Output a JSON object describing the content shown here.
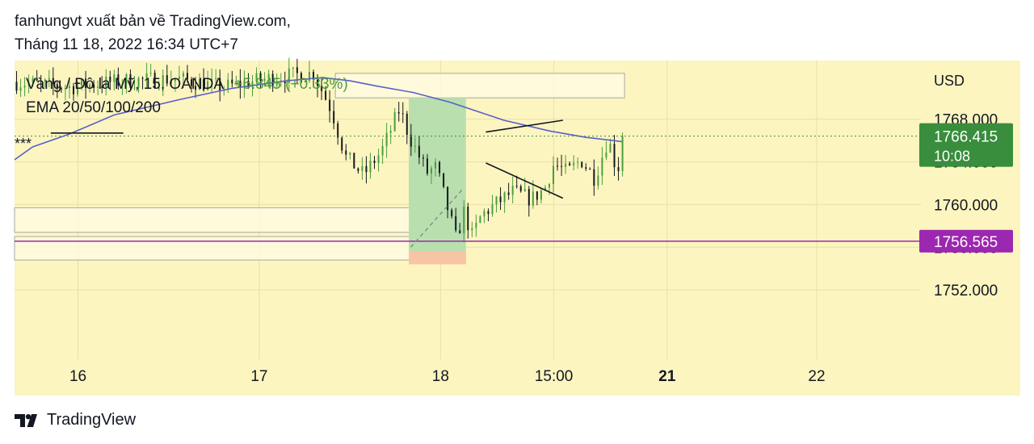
{
  "header": {
    "publisher_line": "fanhungvt xuất bản về TradingView.com,",
    "date_line": "Tháng 11 18, 2022 16:34 UTC+7"
  },
  "legend": {
    "symbol": "Vàng / Đô la Mỹ, 15, OANDA",
    "change": "+5.845 (+0.33%)",
    "indicator": "EMA 20/50/100/200"
  },
  "annotation": "***",
  "price_axis": {
    "currency": "USD",
    "ticks": [
      "1768.000",
      "1764.000",
      "1760.000",
      "1756.000",
      "1752.000"
    ],
    "last_price_badge": {
      "price": "1766.415",
      "countdown": "10:08",
      "color": "#388e3c"
    },
    "level_badge": {
      "price": "1756.565",
      "color": "#9c27b0"
    }
  },
  "time_axis": {
    "labels": [
      "16",
      "17",
      "18",
      "15:00",
      "21",
      "22"
    ]
  },
  "footer": {
    "brand": "TradingView",
    "logo_icon": "tradingview-logo-icon"
  },
  "colors": {
    "background": "#fdf5c0",
    "ema": "#5b5fc7",
    "bull": "#4a9e3f",
    "bear": "#131722",
    "level_line": "#9c27b0",
    "long_target_zone": "#b9dfae",
    "long_stop_zone": "#f9c3a6"
  },
  "chart_data": {
    "type": "candlestick",
    "symbol": "XAUUSD",
    "timeframe": "15",
    "ylim": [
      1745.5,
      1773.5
    ],
    "last_price": 1766.415,
    "horizontal_level": 1756.565,
    "ema_points": [
      {
        "t": 0,
        "v": 1764.2
      },
      {
        "t": 2,
        "v": 1765.4
      },
      {
        "t": 6,
        "v": 1766.6
      },
      {
        "t": 11,
        "v": 1768.4
      },
      {
        "t": 18,
        "v": 1769.8
      },
      {
        "t": 24,
        "v": 1770.9
      },
      {
        "t": 30,
        "v": 1771.6
      },
      {
        "t": 34,
        "v": 1771.9
      },
      {
        "t": 37,
        "v": 1771.6
      },
      {
        "t": 40,
        "v": 1771.1
      },
      {
        "t": 44,
        "v": 1770.5
      },
      {
        "t": 48,
        "v": 1769.6
      },
      {
        "t": 54,
        "v": 1767.9
      },
      {
        "t": 59,
        "v": 1766.9
      },
      {
        "t": 63,
        "v": 1766.3
      },
      {
        "t": 67,
        "v": 1765.9
      }
    ],
    "price_path": [
      {
        "t": 0,
        "v": 1771.5
      },
      {
        "t": 6,
        "v": 1771.0
      },
      {
        "t": 12,
        "v": 1771.6
      },
      {
        "t": 18,
        "v": 1771.8
      },
      {
        "t": 23,
        "v": 1771.0
      },
      {
        "t": 29,
        "v": 1772.0
      },
      {
        "t": 33,
        "v": 1772.3
      },
      {
        "t": 35,
        "v": 1768.8
      },
      {
        "t": 36.5,
        "v": 1764.5
      },
      {
        "t": 38.5,
        "v": 1762.8
      },
      {
        "t": 40.5,
        "v": 1765.0
      },
      {
        "t": 42.5,
        "v": 1769.0
      },
      {
        "t": 43.5,
        "v": 1766.5
      },
      {
        "t": 45.5,
        "v": 1763.0
      },
      {
        "t": 46.5,
        "v": 1763.5
      },
      {
        "t": 48.0,
        "v": 1759.0
      },
      {
        "t": 48.8,
        "v": 1756.5
      },
      {
        "t": 49.5,
        "v": 1759.5
      },
      {
        "t": 50.5,
        "v": 1757.0
      },
      {
        "t": 51.5,
        "v": 1759.0
      },
      {
        "t": 53,
        "v": 1760.0
      },
      {
        "t": 55,
        "v": 1761.2
      },
      {
        "t": 57,
        "v": 1760.5
      },
      {
        "t": 58.5,
        "v": 1761.5
      },
      {
        "t": 59.5,
        "v": 1763.8
      },
      {
        "t": 61,
        "v": 1763.0
      },
      {
        "t": 62.5,
        "v": 1764.2
      },
      {
        "t": 64,
        "v": 1762.5
      },
      {
        "t": 65.5,
        "v": 1766.2
      },
      {
        "t": 66.5,
        "v": 1763.0
      },
      {
        "t": 67.3,
        "v": 1766.4
      }
    ],
    "candle_count": 150,
    "time_range": [
      0,
      100
    ],
    "time_ticks": [
      {
        "label": "16",
        "t": 7.0
      },
      {
        "label": "17",
        "t": 27.0
      },
      {
        "label": "18",
        "t": 47.0
      },
      {
        "label": "15:00",
        "t": 59.5
      },
      {
        "label": "21",
        "t": 72.0
      },
      {
        "label": "22",
        "t": 88.5
      }
    ],
    "zones": [
      {
        "kind": "rectangle",
        "t1": 35.4,
        "t2": 67.3,
        "p1": 1772.3,
        "p2": 1770.0
      },
      {
        "kind": "rectangle",
        "t1": 0,
        "t2": 45.2,
        "p1": 1759.7,
        "p2": 1757.4
      },
      {
        "kind": "rectangle",
        "t1": 0,
        "t2": 45.2,
        "p1": 1757.0,
        "p2": 1754.8
      },
      {
        "kind": "long_target",
        "t1": 43.5,
        "t2": 49.8,
        "p1": 1770.0,
        "p2": 1755.6
      },
      {
        "kind": "long_stop",
        "t1": 43.5,
        "t2": 49.8,
        "p1": 1755.6,
        "p2": 1754.4
      }
    ],
    "trend_lines": [
      {
        "t1": 4,
        "p1": 1766.7,
        "t2": 12,
        "p2": 1766.7
      },
      {
        "t1": 52,
        "p1": 1766.8,
        "t2": 60.5,
        "p2": 1767.9,
        "dashed": true
      },
      {
        "t1": 52,
        "p1": 1763.9,
        "t2": 60.5,
        "p2": 1760.6
      },
      {
        "t1": 43.7,
        "p1": 1756.0,
        "t2": 49.5,
        "p2": 1761.5,
        "dashed": true
      }
    ]
  }
}
